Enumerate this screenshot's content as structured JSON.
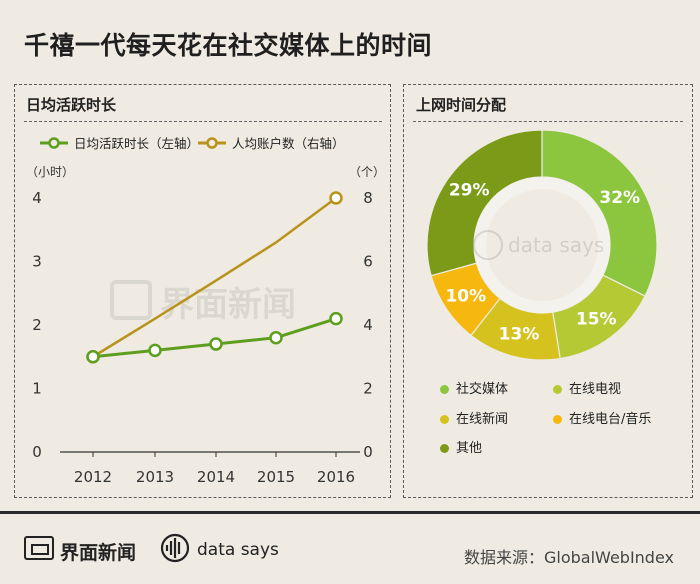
{
  "header": {
    "title": "千禧一代每天花在社交媒体上的时间"
  },
  "left_panel": {
    "title": "日均活跃时长"
  },
  "right_panel": {
    "title": "上网时间分配"
  },
  "footer": {
    "brand": "界面新闻",
    "sub_brand": "data says",
    "source": "数据来源：GlobalWebIndex"
  },
  "watermark": {
    "brand": "界面新闻",
    "sub_brand": "data says"
  },
  "colors": {
    "green_line": "#5e9e1e",
    "gold_line": "#b8931c",
    "social": "#8cc63f",
    "video": "#b5c935",
    "news": "#d6c21e",
    "radio": "#f6b80f",
    "other": "#7b9a18"
  },
  "chart_data": [
    {
      "type": "line",
      "title": "日均活跃时长",
      "x": [
        "2012",
        "2013",
        "2014",
        "2015",
        "2016"
      ],
      "series": [
        {
          "name": "日均活跃时长（左轴）",
          "axis": "left",
          "values": [
            1.5,
            1.6,
            1.7,
            1.8,
            2.1
          ]
        },
        {
          "name": "人均账户数（右轴）",
          "axis": "right",
          "values": [
            3.0,
            4.2,
            5.4,
            6.6,
            8.0
          ]
        }
      ],
      "left_unit": "（小时）",
      "right_unit": "（个）",
      "left_ticks": [
        "0",
        "1",
        "2",
        "3",
        "4"
      ],
      "right_ticks": [
        "0",
        "2",
        "4",
        "6",
        "8"
      ],
      "left_ylim": [
        0,
        4
      ],
      "right_ylim": [
        0,
        8
      ]
    },
    {
      "type": "pie",
      "title": "上网时间分配",
      "labels": [
        "社交媒体",
        "在线电视",
        "在线新闻",
        "在线电台/音乐",
        "其他"
      ],
      "values": [
        32,
        15,
        13,
        10,
        29
      ],
      "value_labels": [
        "32%",
        "15%",
        "13%",
        "10%",
        "29%"
      ]
    }
  ]
}
